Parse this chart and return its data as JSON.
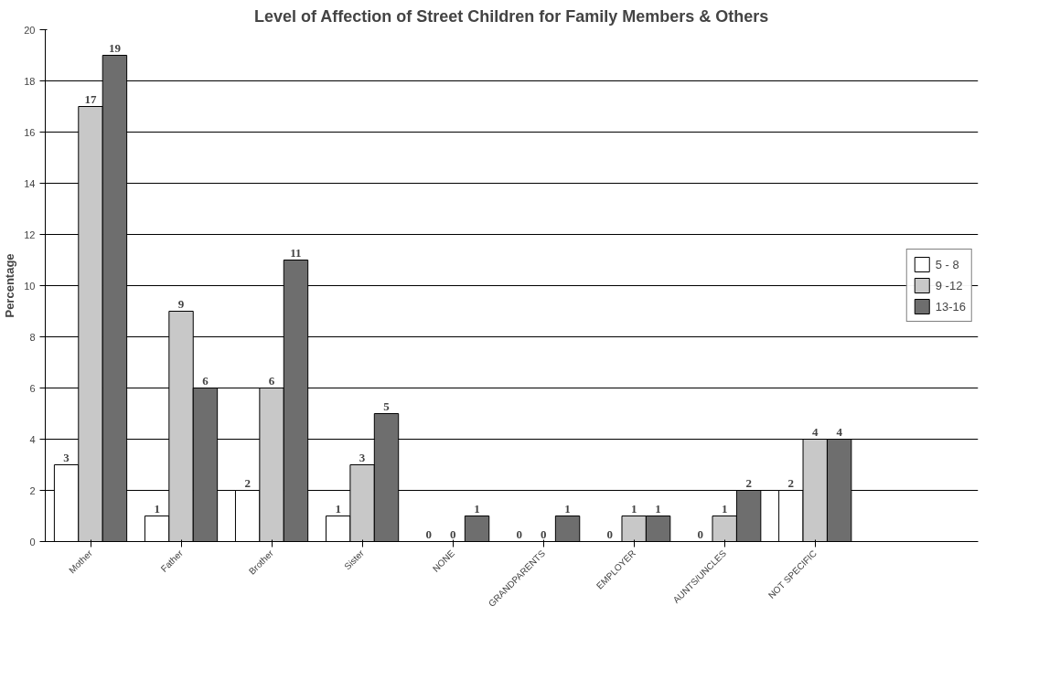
{
  "chart_data": {
    "type": "bar",
    "title": "Level of Affection of Street Children for Family Members & Others",
    "ylabel": "Percentage",
    "categories": [
      "Mother",
      "Father",
      "Brother",
      "Sister",
      "NONE",
      "GRANDPARENTS",
      "EMPLOYER",
      "AUNTS/UNCLES",
      "NOT SPECIFIC"
    ],
    "series": [
      {
        "name": "5 - 8",
        "color": "#ffffff",
        "values": [
          3,
          1,
          2,
          1,
          0,
          0,
          0,
          0,
          2
        ]
      },
      {
        "name": "9 -12",
        "color": "#c8c8c8",
        "values": [
          17,
          9,
          6,
          3,
          0,
          0,
          1,
          1,
          4
        ]
      },
      {
        "name": "13-16",
        "color": "#6e6e6e",
        "values": [
          19,
          6,
          11,
          5,
          1,
          1,
          1,
          2,
          4
        ]
      }
    ],
    "ylim": [
      0,
      20
    ],
    "yticks": [
      0,
      2,
      4,
      6,
      8,
      10,
      12,
      14,
      16,
      18,
      20
    ],
    "grid": "y",
    "legend": "right",
    "data_labels": true
  }
}
